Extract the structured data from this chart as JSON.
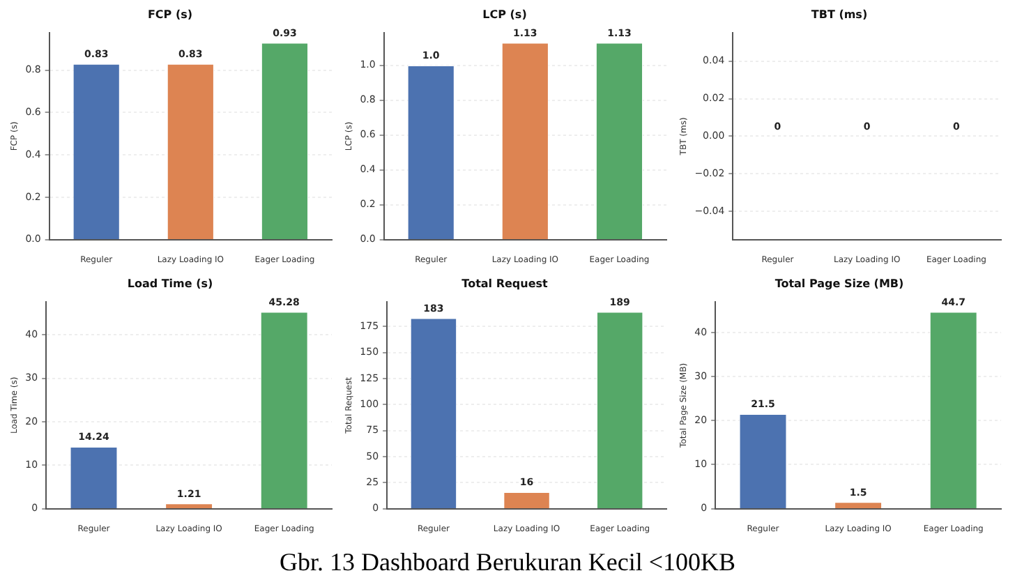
{
  "chart_data": [
    {
      "type": "bar",
      "title": "FCP (s)",
      "ylabel": "FCP (s)",
      "categories": [
        "Reguler",
        "Lazy Loading IO",
        "Eager Loading"
      ],
      "values": [
        0.83,
        0.83,
        0.93
      ],
      "colors": [
        "#4c72b0",
        "#dd8452",
        "#55a868"
      ],
      "value_labels": [
        "0.83",
        "0.83",
        "0.93"
      ],
      "ylim": [
        0,
        0.9765
      ],
      "yticks": [
        {
          "value": 0,
          "label": "0.0"
        },
        0.2,
        0.4,
        0.6,
        0.8
      ],
      "grid": "y"
    },
    {
      "type": "bar",
      "title": "LCP (s)",
      "ylabel": "LCP (s)",
      "categories": [
        "Reguler",
        "Lazy Loading IO",
        "Eager Loading"
      ],
      "values": [
        1.0,
        1.13,
        1.13
      ],
      "colors": [
        "#4c72b0",
        "#dd8452",
        "#55a868"
      ],
      "value_labels": [
        "1.0",
        "1.13",
        "1.13"
      ],
      "ylim": [
        0,
        1.1865
      ],
      "yticks": [
        {
          "value": 0,
          "label": "0.0"
        },
        0.2,
        0.4,
        0.6,
        0.8,
        {
          "value": 1,
          "label": "1.0"
        }
      ],
      "grid": "y"
    },
    {
      "type": "bar",
      "title": "TBT (ms)",
      "ylabel": "TBT (ms)",
      "categories": [
        "Reguler",
        "Lazy Loading IO",
        "Eager Loading"
      ],
      "values": [
        0,
        0,
        0
      ],
      "colors": [
        "#4c72b0",
        "#dd8452",
        "#55a868"
      ],
      "value_labels": [
        "0",
        "0",
        "0"
      ],
      "ylim": [
        -0.055,
        0.055
      ],
      "yticks": [
        {
          "value": -0.04,
          "label": "−0.04"
        },
        {
          "value": -0.02,
          "label": "−0.02"
        },
        {
          "value": 0,
          "label": "0.00"
        },
        {
          "value": 0.02,
          "label": "0.02"
        },
        {
          "value": 0.04,
          "label": "0.04"
        }
      ],
      "grid": "y"
    },
    {
      "type": "bar",
      "title": "Load Time (s)",
      "ylabel": "Load Time (s)",
      "categories": [
        "Reguler",
        "Lazy Loading IO",
        "Eager Loading"
      ],
      "values": [
        14.24,
        1.21,
        45.28
      ],
      "colors": [
        "#4c72b0",
        "#dd8452",
        "#55a868"
      ],
      "value_labels": [
        "14.24",
        "1.21",
        "45.28"
      ],
      "ylim": [
        0,
        47.544
      ],
      "yticks": [
        0,
        10,
        20,
        30,
        40
      ],
      "grid": "y"
    },
    {
      "type": "bar",
      "title": "Total Request",
      "ylabel": "Total Request",
      "categories": [
        "Reguler",
        "Lazy Loading IO",
        "Eager Loading"
      ],
      "values": [
        183,
        16,
        189
      ],
      "colors": [
        "#4c72b0",
        "#dd8452",
        "#55a868"
      ],
      "value_labels": [
        "183",
        "16",
        "189"
      ],
      "ylim": [
        0,
        198.45
      ],
      "yticks": [
        0,
        25,
        50,
        75,
        100,
        125,
        150,
        175
      ],
      "grid": "y"
    },
    {
      "type": "bar",
      "title": "Total Page Size (MB)",
      "ylabel": "Total Page Size (MB)",
      "categories": [
        "Reguler",
        "Lazy Loading IO",
        "Eager Loading"
      ],
      "values": [
        21.5,
        1.5,
        44.7
      ],
      "colors": [
        "#4c72b0",
        "#dd8452",
        "#55a868"
      ],
      "value_labels": [
        "21.5",
        "1.5",
        "44.7"
      ],
      "ylim": [
        0,
        46.935
      ],
      "yticks": [
        0,
        10,
        20,
        30,
        40
      ],
      "grid": "y",
      "annotations": [
        "Gbr. 13 Dashboard Berukuran Kecil <100KB"
      ]
    }
  ]
}
